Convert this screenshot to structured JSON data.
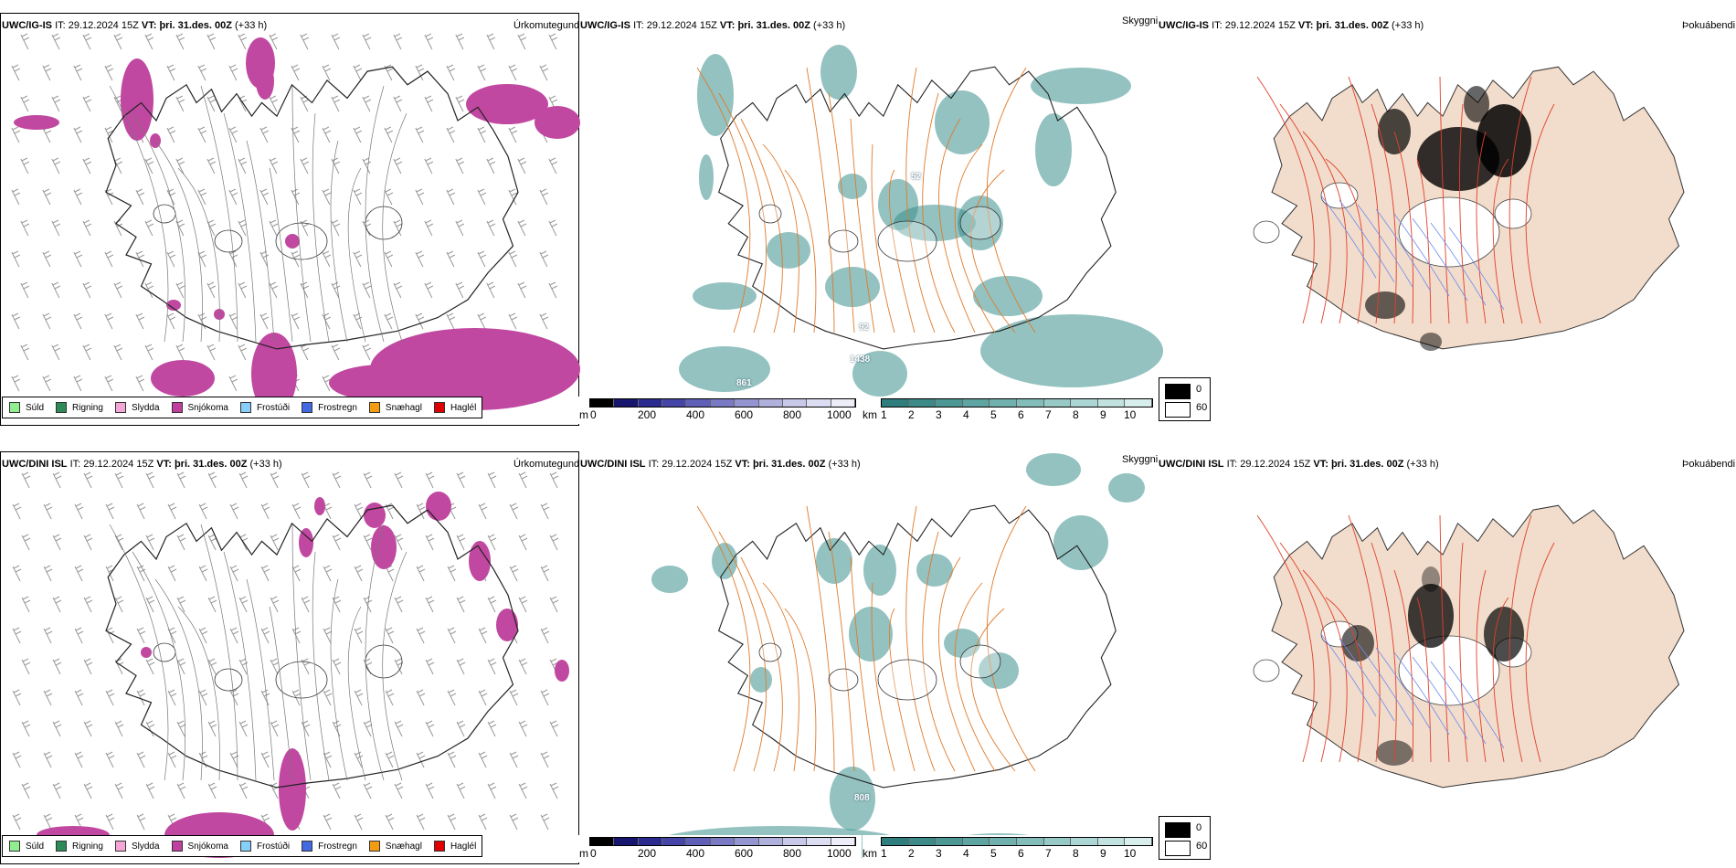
{
  "rows": [
    {
      "model": "UWC/IG-IS",
      "it_label": "IT:",
      "it_value": "29.12.2024 15Z",
      "vt_label": "VT:",
      "vt_value": "þri. 31.des. 00Z",
      "lead": "(+33 h)",
      "cloud_values": [
        {
          "text": "52"
        },
        {
          "text": "1438"
        },
        {
          "text": "861"
        },
        {
          "text": "92"
        }
      ]
    },
    {
      "model": "UWC/DINI ISL",
      "it_label": "IT:",
      "it_value": "29.12.2024 15Z",
      "vt_label": "VT:",
      "vt_value": "þri. 31.des. 00Z",
      "lead": "(+33 h)",
      "cloud_values": [
        {
          "text": "808"
        }
      ]
    }
  ],
  "panels": {
    "precip_title": "Úrkomutegund",
    "cloud_title": "Skyggni",
    "fog_title": "Þokuábendi"
  },
  "precip_legend": [
    {
      "label": "Súld",
      "color": "#90ee90"
    },
    {
      "label": "Rigning",
      "color": "#2e8b57"
    },
    {
      "label": "Slydda",
      "color": "#f4a6d7"
    },
    {
      "label": "Snjókoma",
      "color": "#c040a0"
    },
    {
      "label": "Frostúði",
      "color": "#87cefa"
    },
    {
      "label": "Frostregn",
      "color": "#4169e1"
    },
    {
      "label": "Snæhagl",
      "color": "#f39c12"
    },
    {
      "label": "Haglél",
      "color": "#e00000"
    }
  ],
  "cloud_base_bar": {
    "unit": "m",
    "ticks": [
      "0",
      "200",
      "400",
      "600",
      "800",
      "1000"
    ],
    "colors": [
      "#000000",
      "#16166e",
      "#2a2a8f",
      "#4545a8",
      "#5f5fb8",
      "#7a7ac4",
      "#9494d0",
      "#b0b0dc",
      "#c8c8e8",
      "#dcdcf2",
      "#ededf8"
    ]
  },
  "visibility_bar": {
    "unit": "km",
    "ticks": [
      "1",
      "2",
      "3",
      "4",
      "5",
      "6",
      "7",
      "8",
      "9",
      "10"
    ],
    "colors": [
      "#2f7d7d",
      "#3d8a89",
      "#4d9795",
      "#5ea4a2",
      "#70b1ae",
      "#83bdba",
      "#97cac7",
      "#acd6d3",
      "#c2e2e0",
      "#d8eeec"
    ]
  },
  "fog_legend": [
    {
      "value": "0",
      "color": "#000000"
    },
    {
      "value": "60",
      "color": "#ffffff"
    }
  ],
  "colors": {
    "snow": "#c048a0",
    "cloud_teal": "#3a8f8c",
    "road_orange": "#e07a2a",
    "land_beige": "#f2dccb",
    "road_red": "#e0402a",
    "river_blue": "#6b8cf0"
  }
}
